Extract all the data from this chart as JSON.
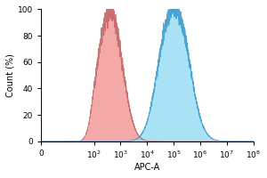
{
  "xlabel": "APC-A",
  "ylabel": "Count (%)",
  "ylim": [
    0,
    100
  ],
  "yticks": [
    0,
    20,
    40,
    60,
    80,
    100
  ],
  "red_peak_log": 2.78,
  "red_sigma": 0.38,
  "red_color": "#F08888",
  "red_edge_color": "#C06060",
  "red_alpha": 0.72,
  "blue_peak_log": 5.05,
  "blue_sigma": 0.52,
  "blue_color": "#88D8F0",
  "blue_edge_color": "#3399CC",
  "blue_alpha": 0.72,
  "background_color": "#ffffff",
  "fig_bg_color": "#ffffff",
  "label_fontsize": 7,
  "tick_fontsize": 6.5
}
